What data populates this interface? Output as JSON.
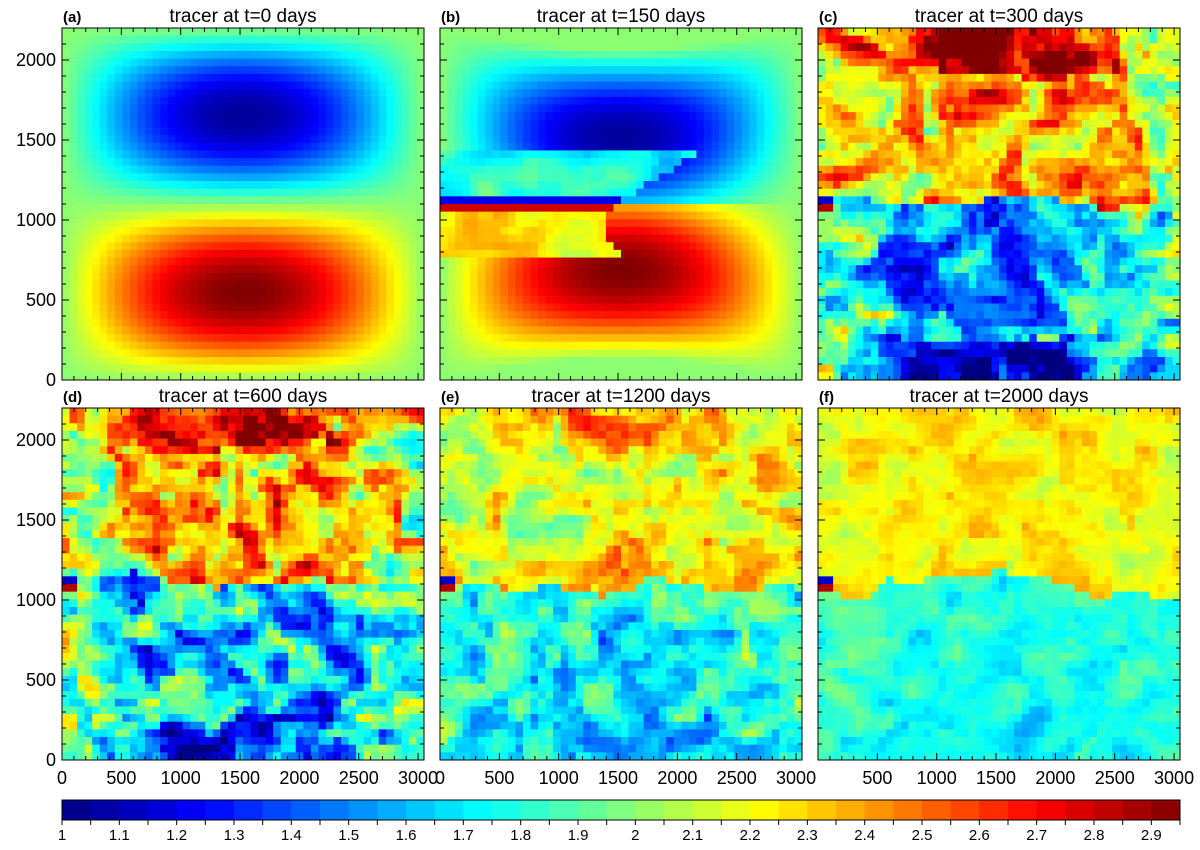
{
  "chart_data": {
    "type": "heatmap",
    "variable": "tracer",
    "panels": [
      {
        "label": "(a)",
        "title": "tracer at t=0 days",
        "t_days": 0,
        "pattern": "initial"
      },
      {
        "label": "(b)",
        "title": "tracer at t=150 days",
        "t_days": 150,
        "pattern": "intrusion"
      },
      {
        "label": "(c)",
        "title": "tracer at t=300 days",
        "t_days": 300,
        "pattern": "turbulent"
      },
      {
        "label": "(d)",
        "title": "tracer at t=600 days",
        "t_days": 600,
        "pattern": "turbulent"
      },
      {
        "label": "(e)",
        "title": "tracer at t=1200 days",
        "t_days": 1200,
        "pattern": "mixing"
      },
      {
        "label": "(f)",
        "title": "tracer at t=2000 days",
        "t_days": 2000,
        "pattern": "mixed"
      }
    ],
    "xlim": [
      0,
      3050
    ],
    "ylim": [
      0,
      2200
    ],
    "x_ticks": [
      0,
      500,
      1000,
      1500,
      2000,
      2500,
      3000
    ],
    "x_tick_labels": [
      "0",
      "500",
      "1000",
      "1500",
      "2000",
      "2500",
      "3000"
    ],
    "x_ticks_col2": [
      500,
      1000,
      1500,
      2000,
      2500,
      3000
    ],
    "x_tick_labels_col2": [
      "500",
      "1000",
      "1500",
      "2000",
      "2500",
      "3000"
    ],
    "y_ticks": [
      0,
      500,
      1000,
      1500,
      2000
    ],
    "y_tick_labels": [
      "0",
      "500",
      "1000",
      "1500",
      "2000"
    ],
    "colorbar": {
      "min": 1.0,
      "max": 2.95,
      "step": 0.05,
      "tick_values": [
        1,
        1.1,
        1.2,
        1.3,
        1.4,
        1.5,
        1.6,
        1.7,
        1.8,
        1.9,
        2,
        2.1,
        2.2,
        2.3,
        2.4,
        2.5,
        2.6,
        2.7,
        2.8,
        2.9
      ],
      "tick_labels": [
        "1",
        "1.1",
        "1.2",
        "1.3",
        "1.4",
        "1.5",
        "1.6",
        "1.7",
        "1.8",
        "1.9",
        "2",
        "2.1",
        "2.2",
        "2.3",
        "2.4",
        "2.5",
        "2.6",
        "2.7",
        "2.8",
        "2.9"
      ],
      "colormap": "jet"
    }
  }
}
